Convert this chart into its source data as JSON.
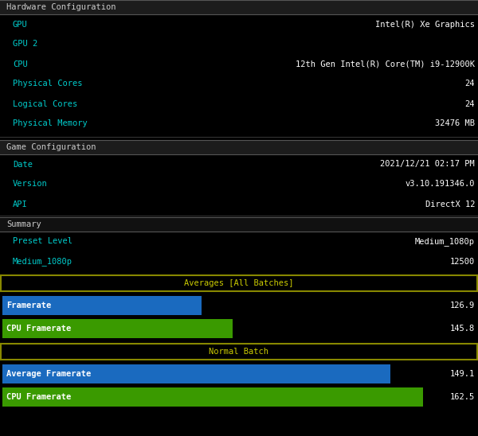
{
  "bg_color": "#000000",
  "section_header_bg": "#1c1c1c",
  "section_header_border": "#555555",
  "section_header_text": "#cccccc",
  "cyan_color": "#00cccc",
  "white_color": "#ffffff",
  "yellow_color": "#cccc00",
  "yellow_border": "#888800",
  "blue_bar_color": "#1a6abf",
  "green_bar_color": "#3a9a00",
  "hw_config_label": "Hardware Configuration",
  "hw_rows": [
    [
      "GPU",
      "Intel(R) Xe Graphics"
    ],
    [
      "GPU 2",
      ""
    ],
    [
      "CPU",
      "12th Gen Intel(R) Core(TM) i9-12900K"
    ],
    [
      "Physical Cores",
      "24"
    ],
    [
      "Logical Cores",
      "24"
    ],
    [
      "Physical Memory",
      "32476 MB"
    ]
  ],
  "game_config_label": "Game Configuration",
  "game_rows": [
    [
      "Date",
      "2021/12/21 02:17 PM"
    ],
    [
      "Version",
      "v3.10.191346.0"
    ],
    [
      "API",
      "DirectX 12"
    ]
  ],
  "summary_label": "Summary",
  "summary_rows": [
    [
      "Preset Level",
      "Medium_1080p"
    ],
    [
      "Medium_1080p",
      "12500"
    ]
  ],
  "avg_label": "Averages [All Batches]",
  "avg_bars": [
    {
      "label": "Framerate",
      "value": "126.9",
      "color": "#1a6abf",
      "pct": 0.455
    },
    {
      "label": "CPU Framerate",
      "value": "145.8",
      "color": "#3a9a00",
      "pct": 0.525
    }
  ],
  "normal_label": "Normal Batch",
  "normal_bars": [
    {
      "label": "Average Framerate",
      "value": "149.1",
      "color": "#1a6abf",
      "pct": 0.885
    },
    {
      "label": "CPU Framerate",
      "value": "162.5",
      "color": "#3a9a00",
      "pct": 0.96
    }
  ],
  "font_size": 7.5,
  "header_font_size": 7.5
}
